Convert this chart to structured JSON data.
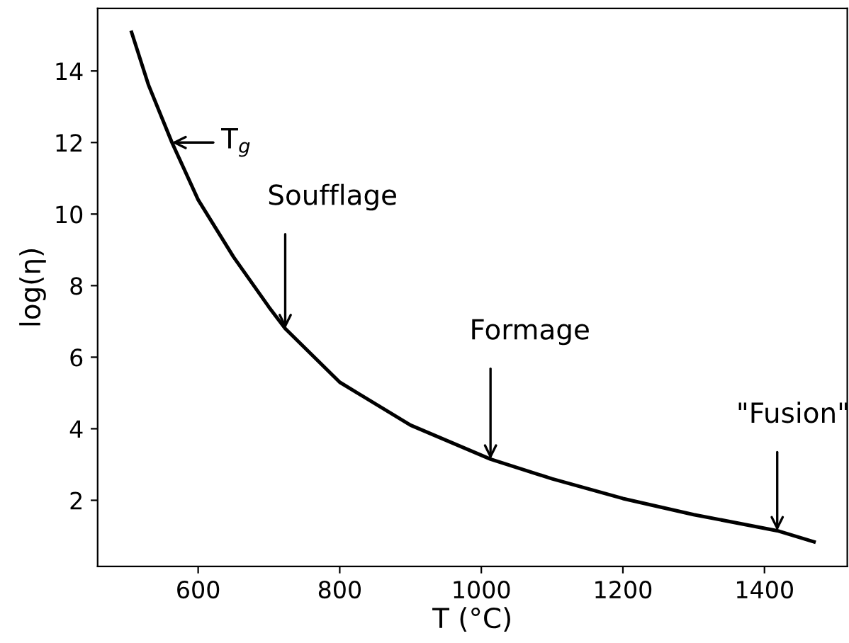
{
  "chart_data": {
    "type": "line",
    "xlabel": "T (°C)",
    "ylabel": "log(η)",
    "x": [
      506,
      530,
      563,
      600,
      650,
      700,
      723,
      800,
      900,
      1013,
      1100,
      1200,
      1300,
      1418,
      1470
    ],
    "series": [
      {
        "color": "#000000",
        "values": [
          15.08,
          13.6,
          12.0,
          10.4,
          8.8,
          7.4,
          6.8,
          5.3,
          4.1,
          3.15,
          2.6,
          2.05,
          1.6,
          1.15,
          0.84
        ]
      }
    ],
    "xlim": [
      458,
      1517
    ],
    "xticks": [
      600,
      800,
      1000,
      1200,
      1400
    ],
    "ylim": [
      0.15,
      15.75
    ],
    "yticks": [
      2,
      4,
      6,
      8,
      10,
      12,
      14
    ],
    "grid": false,
    "legend": false,
    "marker": "none",
    "line_style": "solid",
    "annotations": [
      {
        "text": "T$_{g}$",
        "x": 563,
        "y": 12.0
      },
      {
        "text": "Soufflage",
        "x": 723,
        "y": 6.8
      },
      {
        "text": "Formage",
        "x": 1013,
        "y": 3.15
      },
      {
        "text": "\"Fusion\"",
        "x": 1418,
        "y": 1.15
      }
    ]
  }
}
